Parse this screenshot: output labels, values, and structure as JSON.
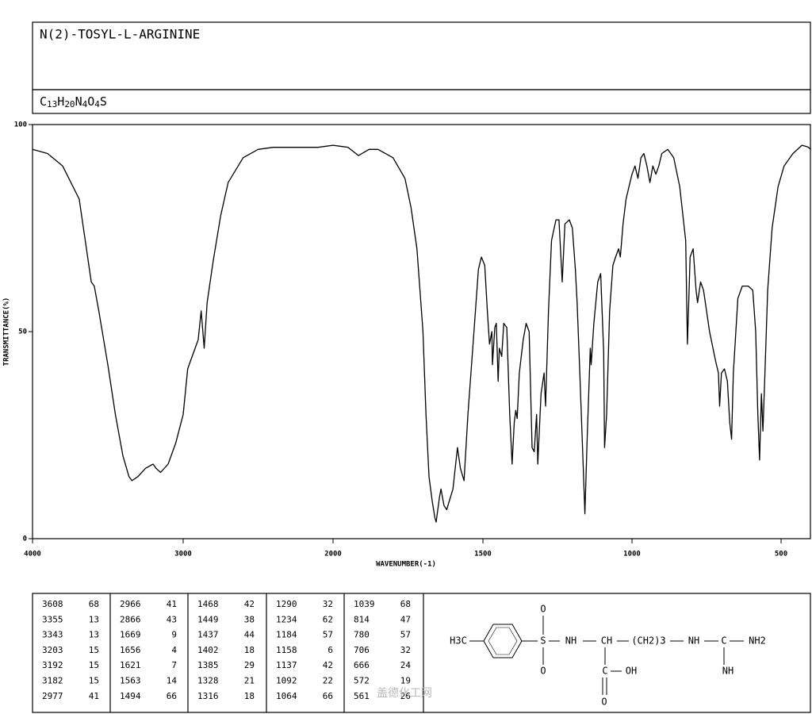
{
  "header": {
    "title": "N(2)-TOSYL-L-ARGININE",
    "formula": [
      "C",
      "13",
      "H",
      "20",
      "N",
      "4",
      "O",
      "4",
      "S"
    ]
  },
  "chart_data": {
    "type": "line",
    "color": "#000000",
    "ylabel": "TRANSMITTANCE(%)",
    "xlabel": "WAVENUMBER(-1)",
    "xlim": [
      4000,
      400
    ],
    "ylim": [
      0,
      100
    ],
    "xticks": [
      4000,
      3000,
      2000,
      1500,
      1000,
      500
    ],
    "yticks": [
      0,
      50,
      100
    ],
    "x": [
      4000,
      3900,
      3800,
      3690,
      3650,
      3610,
      3590,
      3560,
      3500,
      3450,
      3400,
      3360,
      3340,
      3300,
      3250,
      3200,
      3180,
      3150,
      3100,
      3050,
      3000,
      2970,
      2950,
      2900,
      2880,
      2860,
      2840,
      2800,
      2750,
      2700,
      2600,
      2500,
      2400,
      2200,
      2100,
      2000,
      1950,
      1915,
      1880,
      1850,
      1800,
      1760,
      1740,
      1720,
      1700,
      1690,
      1680,
      1669,
      1660,
      1656,
      1645,
      1640,
      1630,
      1621,
      1600,
      1585,
      1575,
      1563,
      1550,
      1530,
      1515,
      1505,
      1494,
      1485,
      1478,
      1470,
      1468,
      1460,
      1455,
      1449,
      1445,
      1437,
      1430,
      1420,
      1410,
      1402,
      1395,
      1390,
      1385,
      1378,
      1365,
      1355,
      1345,
      1335,
      1328,
      1320,
      1316,
      1305,
      1295,
      1290,
      1280,
      1270,
      1255,
      1245,
      1234,
      1225,
      1210,
      1200,
      1190,
      1184,
      1175,
      1165,
      1158,
      1150,
      1140,
      1137,
      1128,
      1115,
      1105,
      1095,
      1092,
      1085,
      1075,
      1064,
      1055,
      1045,
      1039,
      1030,
      1020,
      1010,
      1000,
      990,
      980,
      970,
      960,
      950,
      940,
      930,
      920,
      910,
      900,
      880,
      860,
      840,
      820,
      814,
      805,
      795,
      785,
      780,
      770,
      760,
      740,
      720,
      710,
      706,
      700,
      690,
      680,
      672,
      666,
      660,
      645,
      630,
      610,
      595,
      585,
      578,
      572,
      566,
      561,
      555,
      545,
      530,
      510,
      490,
      460,
      430,
      410,
      400
    ],
    "values": [
      94,
      93,
      90,
      82,
      72,
      62,
      61,
      55,
      42,
      30,
      20,
      15,
      14,
      15,
      17,
      18,
      17,
      16,
      18,
      23,
      30,
      41,
      43,
      48,
      55,
      46,
      57,
      67,
      78,
      86,
      92,
      94,
      94.5,
      94.5,
      94.5,
      95,
      94.5,
      92.5,
      94,
      94,
      92,
      87,
      80,
      70,
      50,
      30,
      15,
      9,
      5,
      4,
      10,
      12,
      8,
      7,
      12,
      22,
      17,
      14,
      30,
      50,
      65,
      68,
      66,
      55,
      47,
      50,
      42,
      51,
      52,
      38,
      46,
      44,
      52,
      51,
      30,
      18,
      28,
      31,
      29,
      40,
      48,
      52,
      50,
      22,
      21,
      30,
      18,
      35,
      40,
      32,
      55,
      72,
      77,
      77,
      62,
      76,
      77,
      75,
      65,
      57,
      40,
      20,
      6,
      25,
      46,
      42,
      52,
      62,
      64,
      45,
      22,
      30,
      55,
      66,
      68,
      70,
      68,
      76,
      82,
      85,
      88,
      90,
      87,
      92,
      93,
      90,
      86,
      90,
      88,
      90,
      93,
      94,
      92,
      85,
      72,
      47,
      68,
      70,
      60,
      57,
      62,
      60,
      50,
      43,
      40,
      32,
      40,
      41,
      38,
      28,
      24,
      40,
      58,
      61,
      61,
      60,
      50,
      30,
      19,
      35,
      26,
      38,
      60,
      75,
      85,
      90,
      93,
      95,
      94.6,
      94
    ]
  },
  "peaks": [
    [
      [
        3608,
        68
      ],
      [
        3355,
        13
      ],
      [
        3343,
        13
      ],
      [
        3203,
        15
      ],
      [
        3192,
        15
      ],
      [
        3182,
        15
      ],
      [
        2977,
        41
      ]
    ],
    [
      [
        2966,
        41
      ],
      [
        2866,
        43
      ],
      [
        1669,
        9
      ],
      [
        1656,
        4
      ],
      [
        1621,
        7
      ],
      [
        1563,
        14
      ],
      [
        1494,
        66
      ]
    ],
    [
      [
        1468,
        42
      ],
      [
        1449,
        38
      ],
      [
        1437,
        44
      ],
      [
        1402,
        18
      ],
      [
        1385,
        29
      ],
      [
        1328,
        21
      ],
      [
        1316,
        18
      ]
    ],
    [
      [
        1290,
        32
      ],
      [
        1234,
        62
      ],
      [
        1184,
        57
      ],
      [
        1158,
        6
      ],
      [
        1137,
        42
      ],
      [
        1092,
        22
      ],
      [
        1064,
        66
      ]
    ],
    [
      [
        1039,
        68
      ],
      [
        814,
        47
      ],
      [
        780,
        57
      ],
      [
        706,
        32
      ],
      [
        666,
        24
      ],
      [
        572,
        19
      ],
      [
        561,
        26
      ]
    ]
  ],
  "structure": [
    "O",
    "H3C",
    "S",
    "NH",
    "CH",
    "(CH2)3",
    "NH",
    "C",
    "NH2",
    "O",
    "C",
    "OH",
    "O",
    "NH"
  ],
  "watermark": "盖德化工网"
}
